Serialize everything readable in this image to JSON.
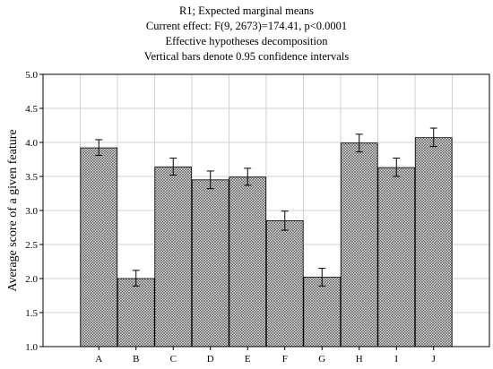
{
  "chart_data": {
    "type": "bar",
    "title_lines": [
      "R1; Expected marginal means",
      "Current effect: F(9, 2673)=174.41, p<0.0001",
      "Effective hypotheses decomposition",
      "Vertical bars denote 0.95 confidence intervals"
    ],
    "xlabel": "",
    "ylabel": "Average score of a given feature",
    "categories": [
      "A",
      "B",
      "C",
      "D",
      "E",
      "F",
      "G",
      "H",
      "I",
      "J"
    ],
    "values": [
      3.92,
      2.0,
      3.64,
      3.45,
      3.49,
      2.85,
      2.02,
      3.99,
      3.63,
      4.07
    ],
    "ci_lower": [
      3.81,
      1.89,
      3.52,
      3.32,
      3.37,
      2.71,
      1.89,
      3.86,
      3.5,
      3.94
    ],
    "ci_upper": [
      4.04,
      2.12,
      3.77,
      3.58,
      3.62,
      2.99,
      2.15,
      4.12,
      3.77,
      4.21
    ],
    "ylim": [
      1.0,
      5.0
    ],
    "yticks": [
      "1.0",
      "1.5",
      "2.0",
      "2.5",
      "3.0",
      "3.5",
      "4.0",
      "4.5",
      "5.0"
    ],
    "grid": true,
    "bar_pattern": "crosshatch",
    "colors": {
      "bar_fill": "#d8d8d8",
      "bar_hatch": "#555555",
      "grid": "#d0d0d0",
      "axis": "#000000"
    }
  }
}
